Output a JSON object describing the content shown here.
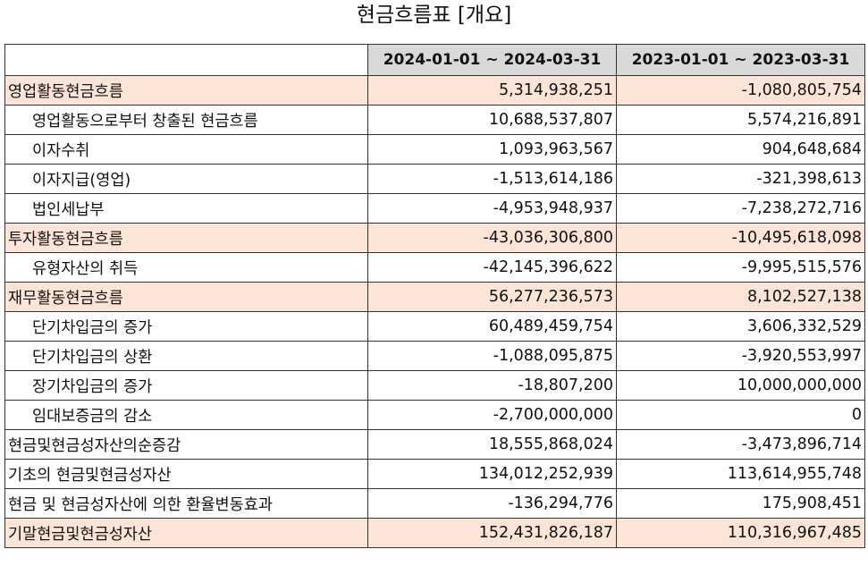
{
  "title": "현금흐름표 [개요]",
  "table": {
    "headers": [
      "",
      "2024-01-01 ~ 2024-03-31",
      "2023-01-01 ~ 2023-03-31"
    ],
    "rows": [
      {
        "label": "영업활동현금흐름",
        "v1": "5,314,938,251",
        "v2": "-1,080,805,754",
        "highlight": true,
        "indent": false
      },
      {
        "label": "영업활동으로부터 창출된 현금흐름",
        "v1": "10,688,537,807",
        "v2": "5,574,216,891",
        "highlight": false,
        "indent": true
      },
      {
        "label": "이자수취",
        "v1": "1,093,963,567",
        "v2": "904,648,684",
        "highlight": false,
        "indent": true
      },
      {
        "label": "이자지급(영업)",
        "v1": "-1,513,614,186",
        "v2": "-321,398,613",
        "highlight": false,
        "indent": true
      },
      {
        "label": "법인세납부",
        "v1": "-4,953,948,937",
        "v2": "-7,238,272,716",
        "highlight": false,
        "indent": true
      },
      {
        "label": "투자활동현금흐름",
        "v1": "-43,036,306,800",
        "v2": "-10,495,618,098",
        "highlight": true,
        "indent": false
      },
      {
        "label": "유형자산의 취득",
        "v1": "-42,145,396,622",
        "v2": "-9,995,515,576",
        "highlight": false,
        "indent": true
      },
      {
        "label": "재무활동현금흐름",
        "v1": "56,277,236,573",
        "v2": "8,102,527,138",
        "highlight": true,
        "indent": false
      },
      {
        "label": "단기차입금의 증가",
        "v1": "60,489,459,754",
        "v2": "3,606,332,529",
        "highlight": false,
        "indent": true
      },
      {
        "label": "단기차입금의 상환",
        "v1": "-1,088,095,875",
        "v2": "-3,920,553,997",
        "highlight": false,
        "indent": true
      },
      {
        "label": "장기차입금의 증가",
        "v1": "-18,807,200",
        "v2": "10,000,000,000",
        "highlight": false,
        "indent": true
      },
      {
        "label": "임대보증금의 감소",
        "v1": "-2,700,000,000",
        "v2": "0",
        "highlight": false,
        "indent": true
      },
      {
        "label": "현금및현금성자산의순증감",
        "v1": "18,555,868,024",
        "v2": "-3,473,896,714",
        "highlight": false,
        "indent": false
      },
      {
        "label": "기초의 현금및현금성자산",
        "v1": "134,012,252,939",
        "v2": "113,614,955,748",
        "highlight": false,
        "indent": false
      },
      {
        "label": "현금 및 현금성자산에 의한 환율변동효과",
        "v1": "-136,294,776",
        "v2": "175,908,451",
        "highlight": false,
        "indent": false
      },
      {
        "label": "기말현금및현금성자산",
        "v1": "152,431,826,187",
        "v2": "110,316,967,485",
        "highlight": true,
        "indent": false
      }
    ]
  }
}
